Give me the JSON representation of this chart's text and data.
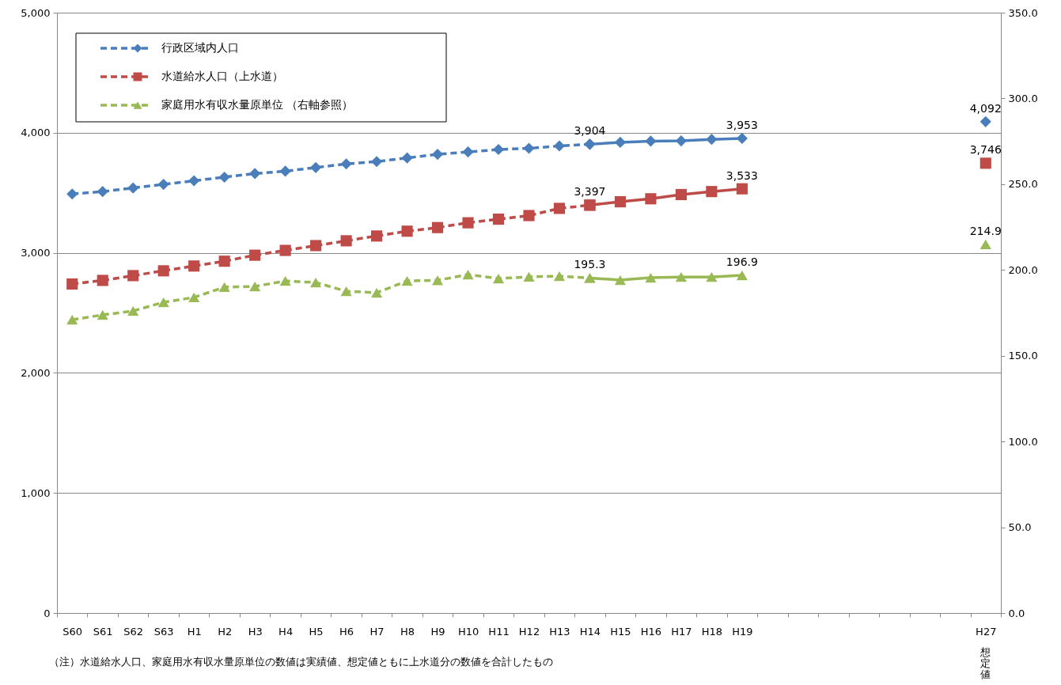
{
  "chart_data": {
    "type": "line",
    "categories": [
      "S60",
      "S61",
      "S62",
      "S63",
      "H1",
      "H2",
      "H3",
      "H4",
      "H5",
      "H6",
      "H7",
      "H8",
      "H9",
      "H10",
      "H11",
      "H12",
      "H13",
      "H14",
      "H15",
      "H16",
      "H17",
      "H18",
      "H19",
      null,
      null,
      null,
      null,
      null,
      null,
      null,
      "H27"
    ],
    "series": [
      {
        "name": "行政区域内人口",
        "color": "#4a7ebb",
        "marker": "diamond",
        "line_style": "dashed",
        "values": [
          3490,
          3510,
          3540,
          3570,
          3600,
          3630,
          3660,
          3680,
          3710,
          3740,
          3760,
          3790,
          3820,
          3840,
          3860,
          3870,
          3890,
          3904,
          null,
          null,
          null,
          null,
          null,
          null,
          null,
          null,
          null,
          null,
          null,
          null,
          null
        ]
      },
      {
        "color": "#4a7ebb",
        "marker": "diamond",
        "line_style": "solid",
        "values": [
          null,
          null,
          null,
          null,
          null,
          null,
          null,
          null,
          null,
          null,
          null,
          null,
          null,
          null,
          null,
          null,
          null,
          3904,
          3920,
          3930,
          3932,
          3945,
          3953,
          null,
          null,
          null,
          null,
          null,
          null,
          null,
          4092
        ],
        "value_labels": [
          null,
          null,
          null,
          null,
          null,
          null,
          null,
          null,
          null,
          null,
          null,
          null,
          null,
          null,
          null,
          null,
          null,
          "3,904",
          null,
          null,
          null,
          null,
          "3,953",
          null,
          null,
          null,
          null,
          null,
          null,
          null,
          "4,092"
        ]
      },
      {
        "name": "水道給水人口（上水道）",
        "color": "#be4b48",
        "marker": "square",
        "line_style": "dashed",
        "values": [
          2740,
          2770,
          2810,
          2850,
          2890,
          2930,
          2980,
          3020,
          3060,
          3100,
          3140,
          3180,
          3210,
          3250,
          3280,
          3310,
          3370,
          3397,
          null,
          null,
          null,
          null,
          null,
          null,
          null,
          null,
          null,
          null,
          null,
          null,
          null
        ]
      },
      {
        "color": "#be4b48",
        "marker": "square",
        "line_style": "solid",
        "values": [
          null,
          null,
          null,
          null,
          null,
          null,
          null,
          null,
          null,
          null,
          null,
          null,
          null,
          null,
          null,
          null,
          null,
          3397,
          3425,
          3450,
          3485,
          3510,
          3533,
          null,
          null,
          null,
          null,
          null,
          null,
          null,
          3746
        ],
        "value_labels": [
          null,
          null,
          null,
          null,
          null,
          null,
          null,
          null,
          null,
          null,
          null,
          null,
          null,
          null,
          null,
          null,
          null,
          "3,397",
          null,
          null,
          null,
          null,
          "3,533",
          null,
          null,
          null,
          null,
          null,
          null,
          null,
          "3,746"
        ]
      },
      {
        "name": "家庭用水有収水量原単位 （右軸参照）",
        "color": "#98b954",
        "marker": "triangle",
        "line_style": "dashed",
        "axis": "y2",
        "values": [
          171.0,
          173.8,
          176.1,
          181.2,
          184.0,
          190.0,
          190.4,
          193.6,
          192.7,
          187.6,
          186.7,
          193.6,
          194.0,
          197.3,
          195.0,
          196.0,
          196.4,
          195.3,
          null,
          null,
          null,
          null,
          null,
          null,
          null,
          null,
          null,
          null,
          null,
          null,
          null
        ]
      },
      {
        "color": "#98b954",
        "marker": "triangle",
        "line_style": "solid",
        "axis": "y2",
        "values": [
          null,
          null,
          null,
          null,
          null,
          null,
          null,
          null,
          null,
          null,
          null,
          null,
          null,
          null,
          null,
          null,
          null,
          195.3,
          194.1,
          195.5,
          195.9,
          195.9,
          196.9,
          null,
          null,
          null,
          null,
          null,
          null,
          null,
          214.9
        ],
        "value_labels": [
          null,
          null,
          null,
          null,
          null,
          null,
          null,
          null,
          null,
          null,
          null,
          null,
          null,
          null,
          null,
          null,
          null,
          "195.3",
          null,
          null,
          null,
          null,
          "196.9",
          null,
          null,
          null,
          null,
          null,
          null,
          null,
          "214.9"
        ]
      }
    ],
    "ylim": [
      0,
      5000
    ],
    "yticks": [
      {
        "value": 0,
        "label": "0"
      },
      {
        "value": 1000,
        "label": "1,000"
      },
      {
        "value": 2000,
        "label": "2,000"
      },
      {
        "value": 3000,
        "label": "3,000"
      },
      {
        "value": 4000,
        "label": "4,000"
      },
      {
        "value": 5000,
        "label": "5,000"
      }
    ],
    "y2lim": [
      0,
      350
    ],
    "y2ticks": [
      {
        "value": 0,
        "label": "0.0"
      },
      {
        "value": 50,
        "label": "50.0"
      },
      {
        "value": 100,
        "label": "100.0"
      },
      {
        "value": 150,
        "label": "150.0"
      },
      {
        "value": 200,
        "label": "200.0"
      },
      {
        "value": 250,
        "label": "250.0"
      },
      {
        "value": 300,
        "label": "300.0"
      },
      {
        "value": 350,
        "label": "350.0"
      }
    ],
    "grid": "y",
    "legend": "top left",
    "annotations": [
      "想定値",
      "（注）水道給水人口、家庭用水有収水量原単位の数値は実績値、想定値ともに上水道分の数値を合計したもの"
    ]
  }
}
